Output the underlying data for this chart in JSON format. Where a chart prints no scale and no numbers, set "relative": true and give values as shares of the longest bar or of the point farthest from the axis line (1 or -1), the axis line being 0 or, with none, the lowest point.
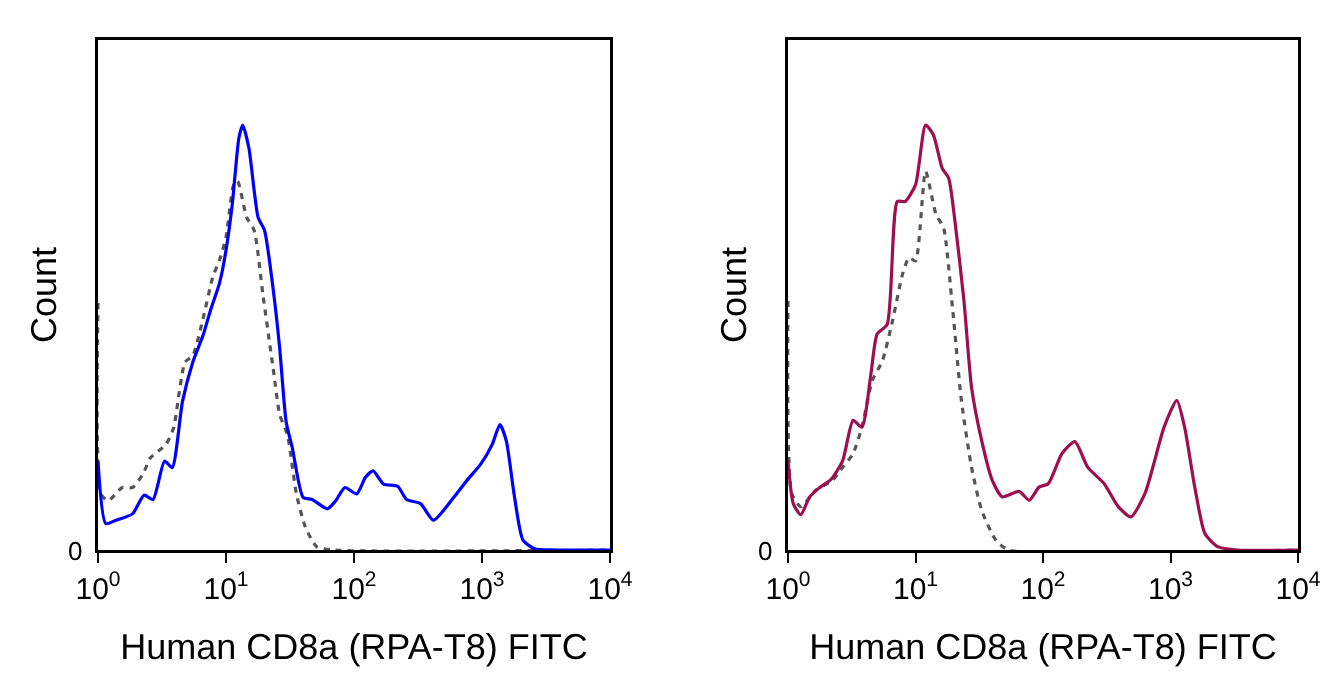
{
  "chart_data": [
    {
      "type": "line",
      "relative": true,
      "xlabel": "Human CD8a (RPA-T8) FITC",
      "ylabel": "Count",
      "log": "x",
      "xlim": [
        1,
        10000
      ],
      "xticks": [
        {
          "value": 1,
          "label": "10$^{0}$"
        },
        {
          "value": 10,
          "label": "10$^{1}$"
        },
        {
          "value": 100,
          "label": "10$^{2}$"
        },
        {
          "value": 1000,
          "label": "10$^{3}$"
        },
        {
          "value": 10000,
          "label": "10$^{4}$"
        }
      ],
      "annotations": [
        "0"
      ],
      "series": [
        {
          "color": "#555555",
          "line_style": "dotted",
          "x": [
            1,
            1.05,
            1.2,
            1.55,
            1.86,
            2.24,
            2.57,
            3.39,
            3.89,
            4.79,
            5.5,
            6.6,
            7.9,
            8.9,
            10,
            11.5,
            12.3,
            14.5,
            16.6,
            19.5,
            23.4,
            26.3,
            30.2,
            35.5,
            41.7,
            51,
            69,
            10000
          ],
          "values": [
            0.581,
            0.132,
            0.116,
            0.147,
            0.147,
            0.178,
            0.217,
            0.248,
            0.287,
            0.442,
            0.457,
            0.543,
            0.643,
            0.682,
            0.736,
            0.86,
            0.868,
            0.783,
            0.752,
            0.597,
            0.426,
            0.318,
            0.271,
            0.132,
            0.054,
            0.008,
            0,
            0
          ]
        },
        {
          "color": "#0000ff",
          "line_style": "solid",
          "x": [
            1,
            1.15,
            1.38,
            1.86,
            2.29,
            2.69,
            3.31,
            3.8,
            4.57,
            5.5,
            6.6,
            7.6,
            8.9,
            10,
            11.2,
            12.6,
            13.5,
            15.1,
            17.8,
            20,
            23.4,
            26.3,
            29.5,
            33,
            40,
            47,
            62,
            72,
            85,
            105,
            123,
            141,
            170,
            219,
            257,
            331,
            417,
            603,
            759,
            977,
            1200,
            1380,
            1550,
            1780,
            2090,
            2570,
            3720,
            10000
          ],
          "values": [
            0.209,
            0.062,
            0.07,
            0.085,
            0.129,
            0.119,
            0.209,
            0.194,
            0.349,
            0.442,
            0.504,
            0.566,
            0.628,
            0.705,
            0.814,
            0.969,
            1,
            0.946,
            0.783,
            0.752,
            0.612,
            0.473,
            0.302,
            0.24,
            0.124,
            0.119,
            0.097,
            0.116,
            0.147,
            0.132,
            0.171,
            0.186,
            0.155,
            0.15,
            0.119,
            0.109,
            0.07,
            0.124,
            0.163,
            0.202,
            0.248,
            0.295,
            0.256,
            0.132,
            0.023,
            0.003,
            0,
            0
          ]
        }
      ]
    },
    {
      "type": "line",
      "relative": true,
      "xlabel": "Human CD8a (RPA-T8) FITC",
      "ylabel": "Count",
      "log": "x",
      "xlim": [
        1,
        10000
      ],
      "xticks": [
        {
          "value": 1,
          "label": "10$^{0}$"
        },
        {
          "value": 10,
          "label": "10$^{1}$"
        },
        {
          "value": 100,
          "label": "10$^{2}$"
        },
        {
          "value": 1000,
          "label": "10$^{3}$"
        },
        {
          "value": 10000,
          "label": "10$^{4}$"
        }
      ],
      "annotations": [
        "0"
      ],
      "series": [
        {
          "color": "#555555",
          "line_style": "dotted",
          "x": [
            1,
            1.07,
            1.26,
            1.66,
            2.24,
            2.69,
            3.24,
            3.8,
            4.57,
            5.5,
            6.6,
            7.9,
            8.9,
            10,
            12,
            14.5,
            16.6,
            19.5,
            22.9,
            27.5,
            33,
            42.7,
            54,
            10000
          ],
          "values": [
            0.586,
            0.133,
            0.102,
            0.141,
            0.164,
            0.195,
            0.227,
            0.289,
            0.398,
            0.445,
            0.539,
            0.648,
            0.688,
            0.68,
            0.891,
            0.789,
            0.758,
            0.57,
            0.352,
            0.195,
            0.094,
            0.023,
            0,
            0
          ]
        },
        {
          "color": "#9e0f4f",
          "line_style": "solid",
          "x": [
            1,
            1.1,
            1.26,
            1.48,
            1.74,
            2.19,
            2.69,
            3.24,
            3.8,
            4.47,
            5,
            6,
            7.2,
            8.3,
            10,
            12,
            13.8,
            16.2,
            18.2,
            20.4,
            24,
            27.5,
            33,
            40,
            48,
            65,
            78,
            93,
            110,
            141,
            178,
            224,
            302,
            389,
            490,
            631,
            891,
            1120,
            1290,
            1550,
            1860,
            2340,
            3390,
            10000
          ],
          "values": [
            0.211,
            0.109,
            0.083,
            0.125,
            0.145,
            0.167,
            0.211,
            0.305,
            0.289,
            0.414,
            0.508,
            0.531,
            0.82,
            0.82,
            0.859,
            1,
            0.977,
            0.898,
            0.875,
            0.773,
            0.586,
            0.383,
            0.258,
            0.164,
            0.125,
            0.138,
            0.117,
            0.148,
            0.156,
            0.227,
            0.255,
            0.195,
            0.156,
            0.102,
            0.078,
            0.133,
            0.289,
            0.352,
            0.289,
            0.148,
            0.039,
            0.008,
            0,
            0
          ]
        }
      ]
    }
  ]
}
